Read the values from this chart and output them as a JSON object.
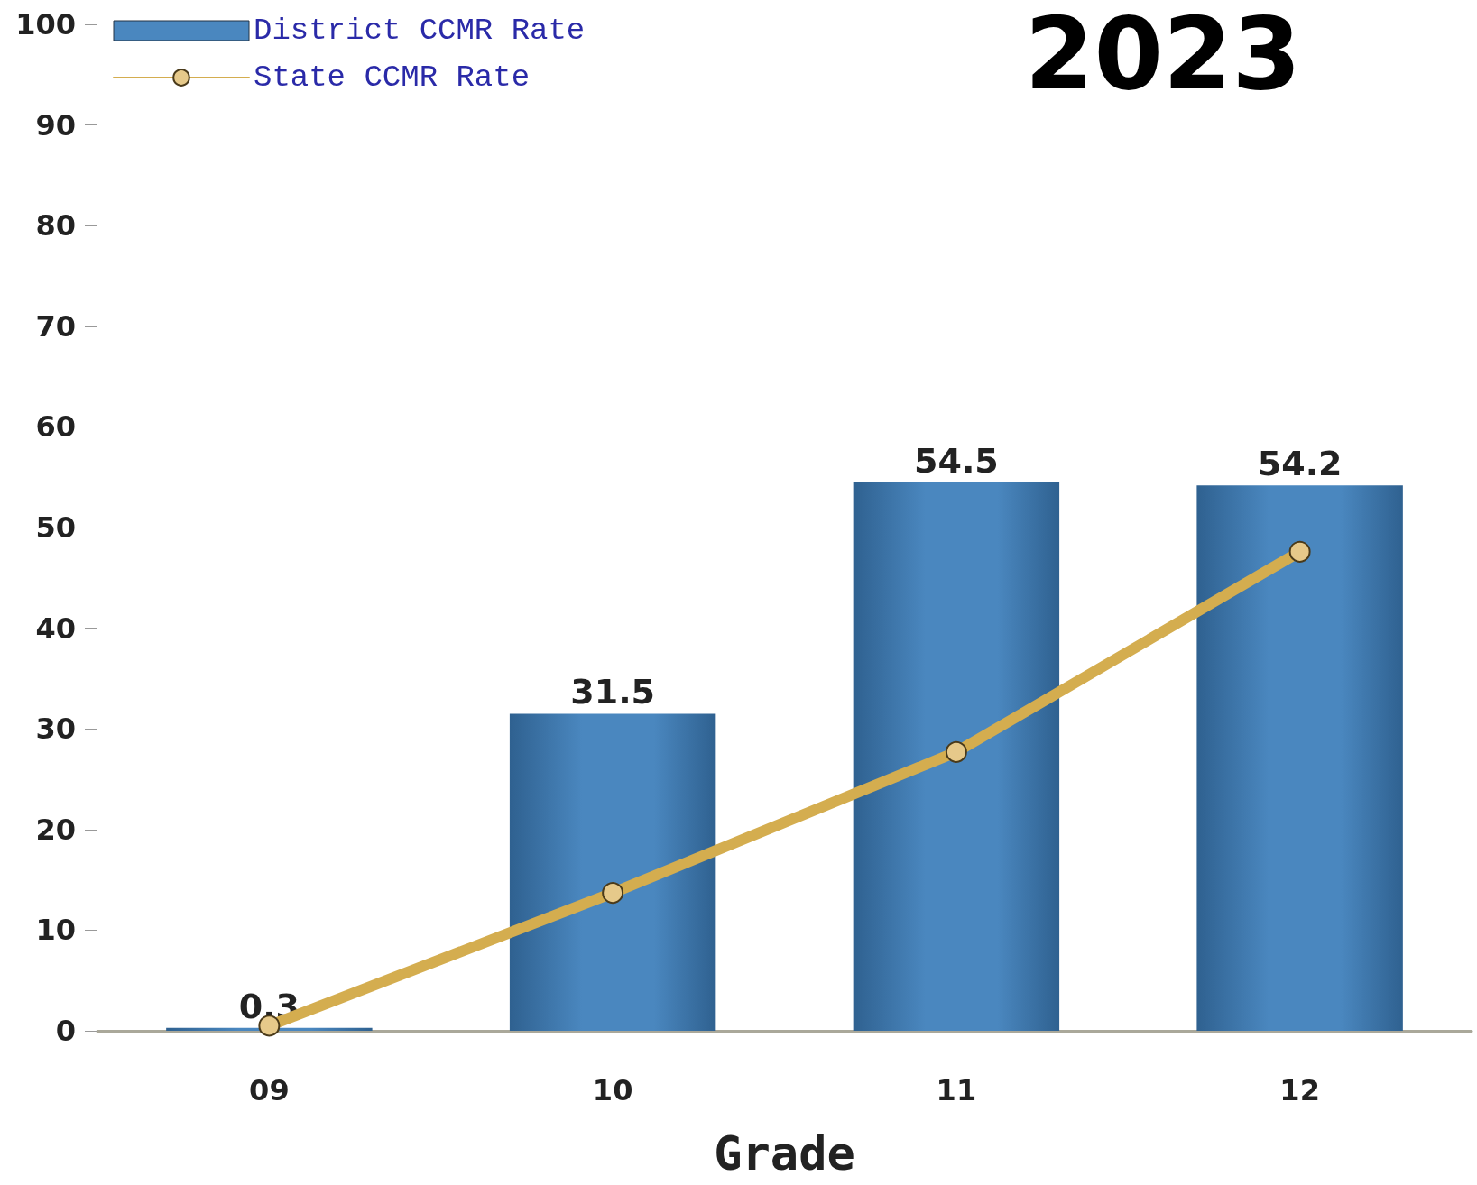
{
  "chart_data": {
    "type": "bar",
    "title": "2023",
    "xlabel": "Grade",
    "categories": [
      "09",
      "10",
      "11",
      "12"
    ],
    "series": [
      {
        "name": "District CCMR Rate",
        "color": "#4a87bf",
        "values": [
          0.3,
          31.5,
          54.5,
          54.2
        ],
        "value_labels": [
          "0.3",
          "31.5",
          "54.5",
          "54.2"
        ],
        "marker": "square"
      },
      {
        "name": "State CCMR Rate",
        "type": "line",
        "color": "#d4ad4f",
        "values": [
          0.5,
          13.7,
          27.7,
          47.6
        ],
        "marker": "circle",
        "line_style": "solid"
      }
    ],
    "ylim": [
      0,
      100
    ],
    "yticks": [
      0,
      10,
      20,
      30,
      40,
      50,
      60,
      70,
      80,
      90,
      100
    ],
    "grid": false,
    "legend": "top left"
  }
}
